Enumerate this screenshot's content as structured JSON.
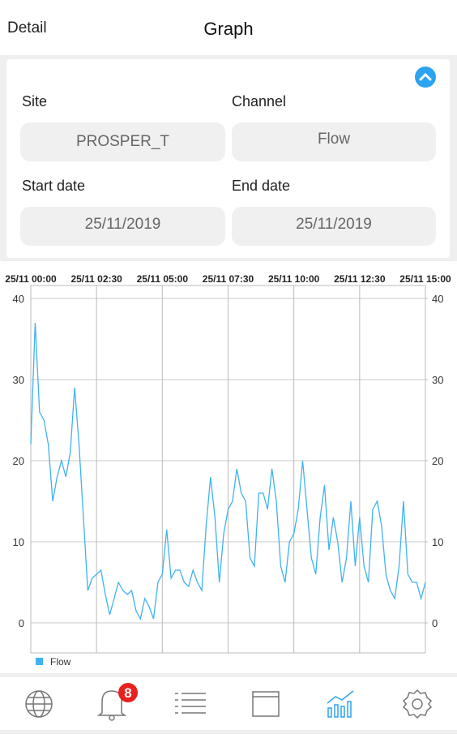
{
  "header": {
    "back": "Detail",
    "title": "Graph"
  },
  "form": {
    "site_label": "Site",
    "site": "PROSPER_T",
    "channel_label": "Channel",
    "channel": "Flow",
    "start_label": "Start date",
    "start": "25/11/2019",
    "end_label": "End date",
    "end": "25/11/2019"
  },
  "nav": {
    "badge": 8
  },
  "chart_data": {
    "type": "line",
    "x": [
      0,
      10,
      20,
      30,
      40,
      50,
      60,
      70,
      80,
      90,
      100,
      110,
      120,
      130,
      140,
      150,
      160,
      170,
      180,
      190,
      200,
      210,
      220,
      230,
      240,
      250,
      260,
      270,
      280,
      290,
      300,
      310,
      320,
      330,
      340,
      350,
      360,
      370,
      380,
      390,
      400,
      410,
      420,
      430,
      440,
      450,
      460,
      470,
      480,
      490,
      500,
      510,
      520,
      530,
      540,
      550,
      560,
      570,
      580,
      590,
      600,
      610,
      620,
      630,
      640,
      650,
      660,
      670,
      680,
      690,
      700,
      710,
      720,
      730,
      740,
      750,
      760,
      770,
      780,
      790,
      800,
      810,
      820,
      830,
      840,
      850,
      860,
      870,
      880,
      890,
      900
    ],
    "series": [
      {
        "name": "Flow",
        "color": "#3fb2f0",
        "values": [
          22,
          37,
          26,
          25,
          22,
          15,
          18,
          20,
          18,
          21,
          29,
          22,
          13,
          4,
          5.5,
          6,
          6.5,
          3.5,
          1,
          3,
          5,
          4,
          3.5,
          4,
          1.5,
          0.5,
          3,
          2,
          0.5,
          5,
          6,
          11.5,
          5.5,
          6.5,
          6.5,
          5,
          4.5,
          6.5,
          5,
          4,
          12,
          18,
          13,
          5,
          11,
          14,
          15,
          19,
          16,
          15,
          8,
          7,
          16,
          16,
          14,
          19,
          15,
          7,
          5,
          10,
          11,
          14,
          20,
          14,
          8,
          6,
          13,
          17,
          9,
          13,
          10,
          5,
          8,
          15,
          7,
          13,
          7,
          5,
          14,
          15,
          12,
          6,
          4,
          3,
          7,
          15,
          6,
          5,
          5,
          3,
          5
        ]
      }
    ],
    "xlim": [
      0,
      900
    ],
    "xticks": [
      {
        "value": 0,
        "label": "25/11 00:00"
      },
      {
        "value": 150,
        "label": "25/11 02:30"
      },
      {
        "value": 300,
        "label": "25/11 05:00"
      },
      {
        "value": 450,
        "label": "25/11 07:30"
      },
      {
        "value": 600,
        "label": "25/11 10:00"
      },
      {
        "value": 750,
        "label": "25/11 12:30"
      },
      {
        "value": 900,
        "label": "25/11 15:00"
      }
    ],
    "ylim": [
      -3.7,
      41.6
    ],
    "yticks": [
      0,
      10,
      20,
      30,
      40
    ],
    "y2lim": [
      -3.7,
      41.6
    ],
    "y2ticks": [
      0,
      10,
      20,
      30,
      40
    ],
    "grid": true,
    "legend": "bottom-left"
  }
}
